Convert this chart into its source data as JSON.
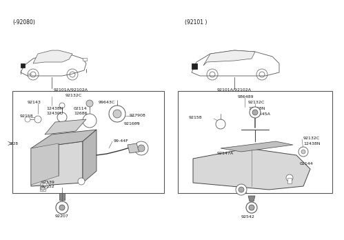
{
  "bg_color": "#ffffff",
  "left_label": "(-92080)",
  "right_label": "(92101 )",
  "left_car_label": "92101A/92102A",
  "right_car_label": "92101A/92102A",
  "left_side_label": "1228",
  "lw_thin": 0.4,
  "lw_med": 0.7,
  "lw_thick": 1.0,
  "text_color": "#111111",
  "line_color": "#555555",
  "part_color": "#888888"
}
